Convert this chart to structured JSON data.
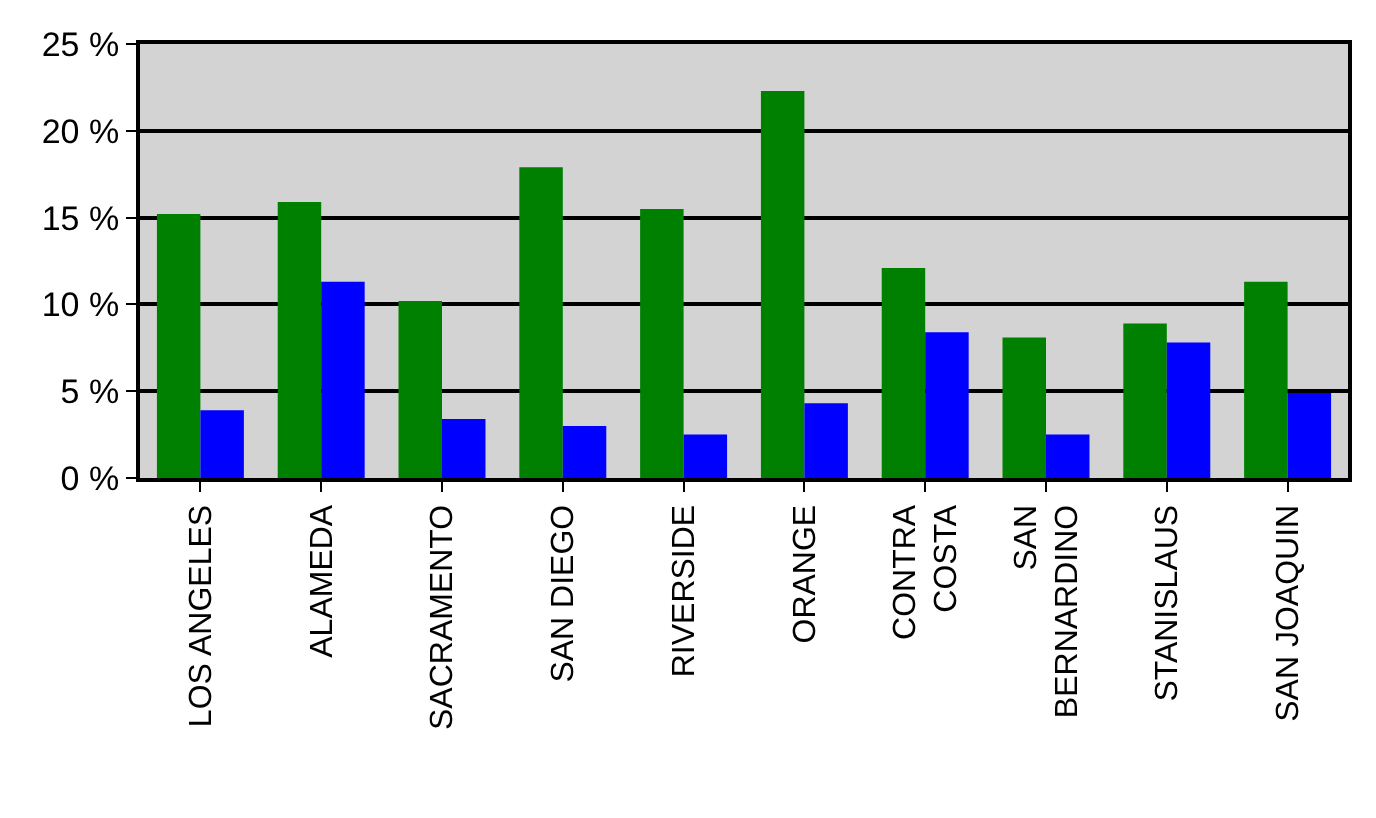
{
  "chart_data": {
    "type": "bar",
    "categories": [
      "LOS ANGELES",
      "ALAMEDA",
      "SACRAMENTO",
      "SAN DIEGO",
      "RIVERSIDE",
      "ORANGE",
      "CONTRA\nCOSTA",
      "SAN\nBERNARDINO",
      "STANISLAUS",
      "SAN JOAQUIN"
    ],
    "series": [
      {
        "color": "#008000",
        "values": [
          15.2,
          15.9,
          10.2,
          17.9,
          15.5,
          22.3,
          12.1,
          8.1,
          8.9,
          11.3
        ]
      },
      {
        "color": "#0000ff",
        "values": [
          3.9,
          11.3,
          3.4,
          3.0,
          2.5,
          4.3,
          8.4,
          2.5,
          7.8,
          4.9
        ]
      }
    ],
    "ylim": [
      0,
      25
    ],
    "yticks": [
      {
        "value": 0,
        "label": "0 %"
      },
      {
        "value": 5,
        "label": "5 %"
      },
      {
        "value": 10,
        "label": "10 %"
      },
      {
        "value": 15,
        "label": "15 %"
      },
      {
        "value": 20,
        "label": "20 %"
      },
      {
        "value": 25,
        "label": "25 %"
      }
    ],
    "grid": "y"
  }
}
